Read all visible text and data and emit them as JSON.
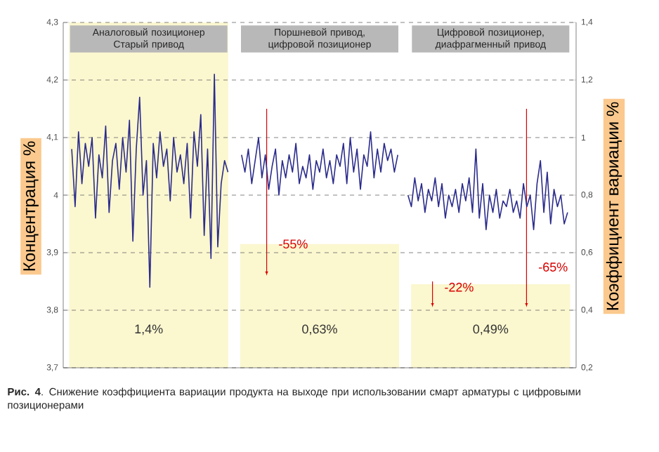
{
  "chart_data": [
    {
      "type": "bar",
      "categories": [
        "Аналоговый позиционер Старый привод",
        "Поршневой привод, цифровой позиционер",
        "Цифровой позиционер, диафрагменный привод"
      ],
      "ylabel": "Коэффициент вариации %",
      "ylim": [
        0.2,
        1.4
      ],
      "yticks": [
        {
          "value": 0.2,
          "label": "0,2"
        },
        {
          "value": 0.4,
          "label": "0,4"
        },
        {
          "value": 0.6,
          "label": "0,6"
        },
        {
          "value": 0.8,
          "label": "0,8"
        },
        {
          "value": 1,
          "label": "1"
        },
        {
          "value": 1.2,
          "label": "1,2"
        },
        {
          "value": 1.4,
          "label": "1,4"
        }
      ],
      "series": [
        {
          "color": "#fbf7cf",
          "values": [
            1.4,
            0.63,
            0.49
          ],
          "value_labels": [
            "1,4%",
            "0,63%",
            "0,49%"
          ]
        }
      ],
      "annotations": [
        "-55%",
        "-22%",
        "-65%",
        "**Рис. 4**. Снижение коэффициента вариации продукта на выходе при использовании смарт арматуры с цифровыми позиционерами"
      ]
    },
    {
      "type": "line",
      "tick_labels": "y",
      "grid": "y",
      "ylabel": "Концентрация %",
      "ylim": [
        3.7,
        4.3
      ],
      "yticks": [
        {
          "value": 3.7,
          "label": "3,7"
        },
        {
          "value": 3.8,
          "label": "3,8"
        },
        {
          "value": 3.9,
          "label": "3,9"
        },
        {
          "value": 4,
          "label": "4"
        },
        {
          "value": 4.1,
          "label": "4,1"
        },
        {
          "value": 4.2,
          "label": "4,2"
        },
        {
          "value": 4.3,
          "label": "4,3"
        }
      ],
      "categories": [
        null,
        null,
        null,
        null,
        null,
        null,
        null,
        null,
        null,
        null,
        null,
        null,
        null,
        null,
        null,
        null,
        null,
        null,
        null,
        null,
        null,
        null,
        null,
        null,
        null,
        null,
        null,
        null,
        null,
        null,
        null,
        null,
        null,
        null,
        null,
        null,
        null,
        null,
        null,
        null,
        null,
        null,
        null,
        null,
        null,
        null,
        null,
        null,
        null,
        null,
        null,
        null,
        null,
        null,
        null,
        null,
        null,
        null,
        null,
        null,
        null,
        null,
        null,
        null,
        null,
        null,
        null,
        null,
        null,
        null,
        null,
        null,
        null,
        null,
        null,
        null,
        null,
        null,
        null,
        null,
        null,
        null,
        null,
        null,
        null,
        null,
        null,
        null,
        null,
        null,
        null,
        null,
        null,
        null,
        null,
        null,
        null,
        null,
        null,
        null,
        null,
        null,
        null,
        null,
        null,
        null,
        null,
        null,
        null,
        null,
        null,
        null,
        null,
        null,
        null,
        null,
        null,
        null,
        null,
        null,
        null,
        null,
        null,
        null,
        null,
        null,
        null,
        null,
        null,
        null,
        null,
        null,
        null,
        null,
        null,
        null,
        null,
        null,
        null,
        null,
        null,
        null,
        null,
        null,
        null,
        null,
        null,
        null,
        null,
        null,
        null
      ],
      "series": [
        {
          "color": "#2b2b8c",
          "values": [
            null,
            null,
            4.08,
            3.98,
            4.11,
            4.02,
            4.09,
            4.05,
            4.1,
            3.96,
            4.07,
            4.03,
            4.12,
            3.97,
            4.06,
            4.09,
            4.01,
            4.1,
            4.04,
            4.13,
            3.92,
            4.08,
            4.17,
            4.0,
            4.06,
            3.84,
            4.09,
            4.03,
            4.11,
            4.05,
            4.08,
            3.99,
            4.1,
            4.04,
            4.07,
            4.02,
            4.09,
            3.96,
            4.11,
            4.05,
            4.14,
            3.93,
            4.08,
            3.89,
            4.21,
            3.91,
            4.02,
            4.06,
            4.04,
            null,
            null,
            null,
            4.07,
            4.04,
            4.08,
            4.02,
            4.06,
            4.1,
            4.03,
            4.07,
            4.01,
            4.05,
            4.08,
            4.0,
            4.06,
            4.03,
            4.07,
            4.04,
            4.09,
            4.02,
            4.05,
            4.03,
            4.07,
            4.01,
            4.06,
            4.04,
            4.08,
            4.03,
            4.06,
            4.02,
            4.07,
            4.05,
            4.09,
            4.02,
            4.1,
            4.04,
            4.08,
            4.01,
            4.07,
            4.05,
            4.11,
            4.03,
            4.08,
            4.04,
            4.09,
            4.06,
            4.08,
            4.04,
            4.07,
            null,
            null,
            4.0,
            3.98,
            4.03,
            3.99,
            4.02,
            3.97,
            4.01,
            3.99,
            4.03,
            3.98,
            4.02,
            3.96,
            4.0,
            3.98,
            4.01,
            3.97,
            4.02,
            3.99,
            4.03,
            3.97,
            4.08,
            3.96,
            4.02,
            3.94,
            4.0,
            3.97,
            4.01,
            3.96,
            3.99,
            3.98,
            4.01,
            3.97,
            3.99,
            3.96,
            4.02,
            3.98,
            4.0,
            3.94,
            4.02,
            4.06,
            3.97,
            4.04,
            3.95,
            4.01,
            3.98,
            4.0,
            3.95,
            3.97,
            null,
            null
          ]
        }
      ]
    }
  ]
}
